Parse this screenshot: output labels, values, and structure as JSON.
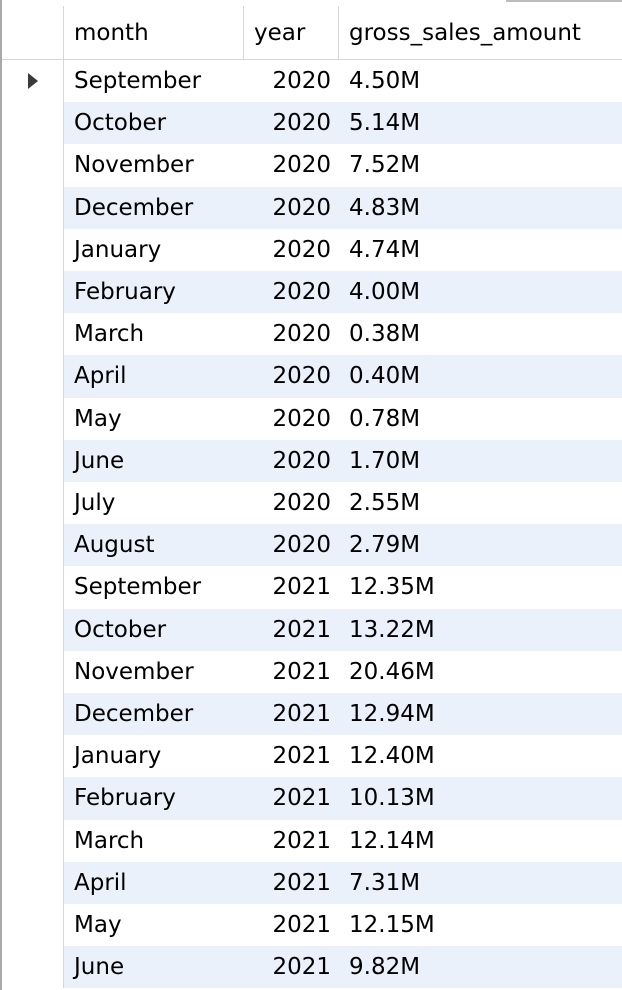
{
  "columns": {
    "month": "month",
    "year": "year",
    "gross": "gross_sales_amount"
  },
  "rows": [
    {
      "month": "September",
      "year": "2020",
      "gross": "4.50M"
    },
    {
      "month": "October",
      "year": "2020",
      "gross": "5.14M"
    },
    {
      "month": "November",
      "year": "2020",
      "gross": "7.52M"
    },
    {
      "month": "December",
      "year": "2020",
      "gross": "4.83M"
    },
    {
      "month": "January",
      "year": "2020",
      "gross": "4.74M"
    },
    {
      "month": "February",
      "year": "2020",
      "gross": "4.00M"
    },
    {
      "month": "March",
      "year": "2020",
      "gross": "0.38M"
    },
    {
      "month": "April",
      "year": "2020",
      "gross": "0.40M"
    },
    {
      "month": "May",
      "year": "2020",
      "gross": "0.78M"
    },
    {
      "month": "June",
      "year": "2020",
      "gross": "1.70M"
    },
    {
      "month": "July",
      "year": "2020",
      "gross": "2.55M"
    },
    {
      "month": "August",
      "year": "2020",
      "gross": "2.79M"
    },
    {
      "month": "September",
      "year": "2021",
      "gross": "12.35M"
    },
    {
      "month": "October",
      "year": "2021",
      "gross": "13.22M"
    },
    {
      "month": "November",
      "year": "2021",
      "gross": "20.46M"
    },
    {
      "month": "December",
      "year": "2021",
      "gross": "12.94M"
    },
    {
      "month": "January",
      "year": "2021",
      "gross": "12.40M"
    },
    {
      "month": "February",
      "year": "2021",
      "gross": "10.13M"
    },
    {
      "month": "March",
      "year": "2021",
      "gross": "12.14M"
    },
    {
      "month": "April",
      "year": "2021",
      "gross": "7.31M"
    },
    {
      "month": "May",
      "year": "2021",
      "gross": "12.15M"
    },
    {
      "month": "June",
      "year": "2021",
      "gross": "9.82M"
    }
  ],
  "selection_indicator": "row-pointer-icon",
  "colors": {
    "alternate_row": "#eaf1fb",
    "grid_line": "#d6d6d6"
  }
}
